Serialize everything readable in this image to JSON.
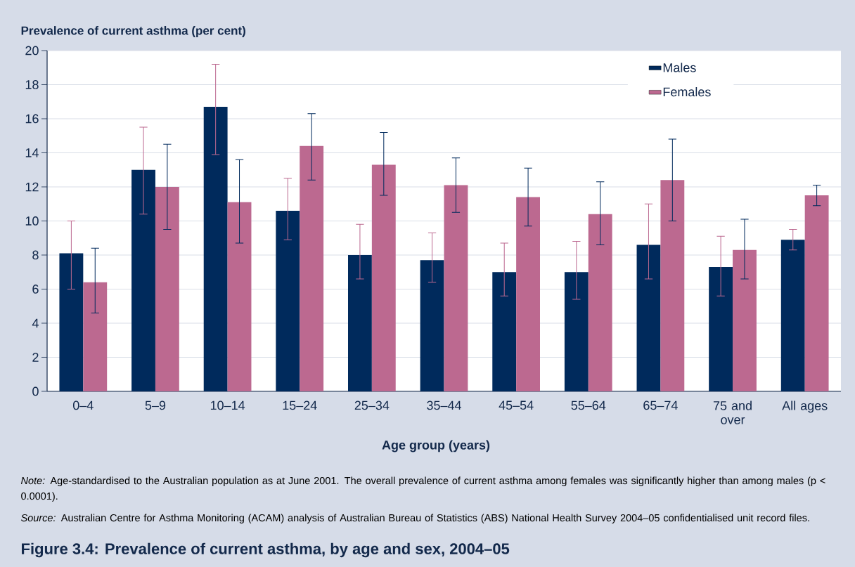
{
  "chart_data": {
    "type": "bar",
    "title": "Figure 3.4: Prevalence of current asthma, by age and sex, 2004–05",
    "ylabel": "Prevalence of current asthma (per cent)",
    "xlabel": "Age group (years)",
    "categories": [
      "0–4",
      "5–9",
      "10–14",
      "15–24",
      "25–34",
      "35–44",
      "45–54",
      "55–64",
      "65–74",
      "75 and over",
      "All ages"
    ],
    "series": [
      {
        "name": "Males",
        "color": "#002a5c",
        "values": [
          8.1,
          13.0,
          16.7,
          10.6,
          8.0,
          7.7,
          7.0,
          7.0,
          8.6,
          7.3,
          8.9
        ],
        "errors": [
          [
            6.0,
            10.0
          ],
          [
            10.4,
            15.5
          ],
          [
            13.9,
            19.2
          ],
          [
            8.9,
            12.5
          ],
          [
            6.6,
            9.8
          ],
          [
            6.4,
            9.3
          ],
          [
            5.6,
            8.7
          ],
          [
            5.4,
            8.8
          ],
          [
            6.6,
            11.0
          ],
          [
            5.6,
            9.1
          ],
          [
            8.3,
            9.5
          ]
        ]
      },
      {
        "name": "Females",
        "color": "#bc6990",
        "values": [
          6.4,
          12.0,
          11.1,
          14.4,
          13.3,
          12.1,
          11.4,
          10.4,
          12.4,
          8.3,
          11.5
        ],
        "errors": [
          [
            4.6,
            8.4
          ],
          [
            9.5,
            14.5
          ],
          [
            8.7,
            13.6
          ],
          [
            12.4,
            16.3
          ],
          [
            11.5,
            15.2
          ],
          [
            10.5,
            13.7
          ],
          [
            9.7,
            13.1
          ],
          [
            8.6,
            12.3
          ],
          [
            10.0,
            14.8
          ],
          [
            6.6,
            10.1
          ],
          [
            10.9,
            12.1
          ]
        ]
      }
    ],
    "ylim": [
      0,
      20
    ],
    "yticks": [
      0,
      2,
      4,
      6,
      8,
      10,
      12,
      14,
      16,
      18,
      20
    ],
    "grid": "y",
    "legend": "top right",
    "annotations": [
      "*Note:* Age-standardised to the Australian population as at June 2001. The overall prevalence of current asthma among females was significantly higher than among males (p < 0.0001).",
      "*Source:* Australian Centre for Asthma Monitoring (ACAM) analysis of Australian Bureau of Statistics (ABS) National Health Survey 2004–05 confidentialised unit record files."
    ]
  }
}
